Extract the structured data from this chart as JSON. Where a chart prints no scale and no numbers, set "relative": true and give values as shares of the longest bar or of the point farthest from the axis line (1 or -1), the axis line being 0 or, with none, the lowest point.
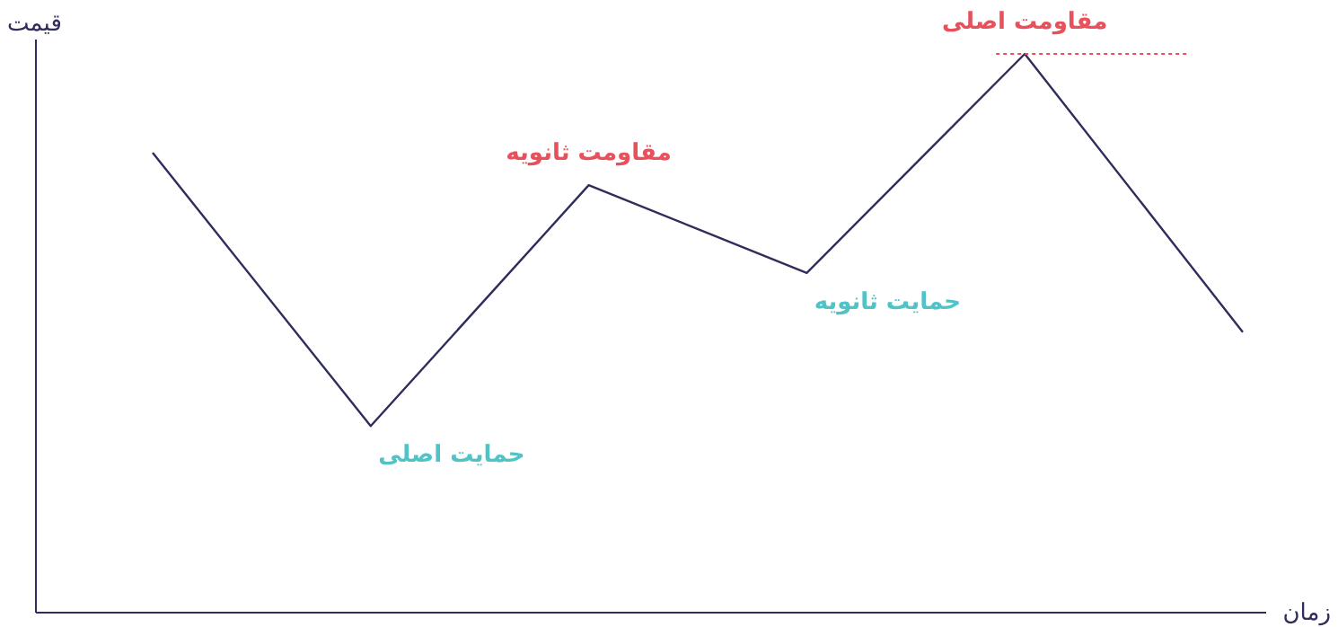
{
  "chart_data": {
    "type": "line",
    "relative": true,
    "xlabel": "زمان",
    "ylabel": "قیمت",
    "categories": [
      null,
      null,
      null,
      null,
      null,
      null
    ],
    "series": [
      {
        "color": "#2e2d5c",
        "values": [
          0.823,
          0.334,
          0.765,
          0.608,
          1,
          0.502
        ]
      }
    ],
    "annotations": [
      "مقاومت اصلی",
      "مقاومت ثانویه",
      "حمایت ثانویه",
      "حمایت اصلی"
    ],
    "marker": "none",
    "line_style": "solid"
  }
}
